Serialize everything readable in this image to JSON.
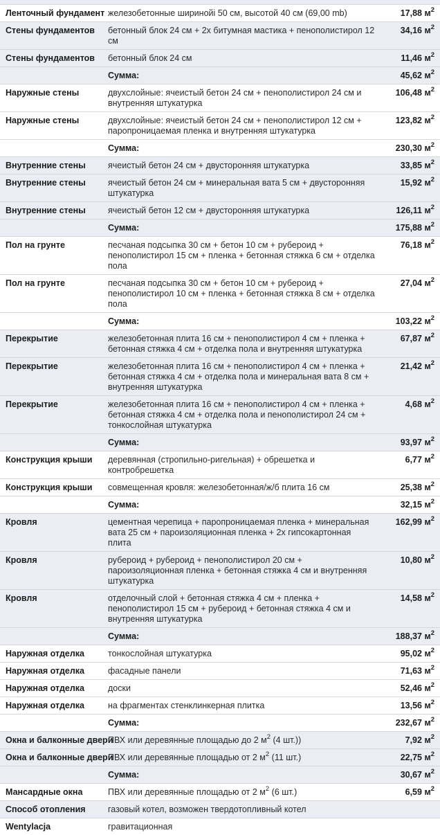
{
  "table": {
    "area_unit": "м",
    "area_sup": "2",
    "sum_label": "Сумма:",
    "colors": {
      "row_tint": "#eaedf4",
      "row_border": "#d6d6d6",
      "text": "#1c1c1c"
    },
    "rows": [
      {
        "type": "item",
        "group": 1,
        "label": "Ленточный фундамент",
        "desc": "железобетонные ширинойі 50 см, высотой 40 см (69,00 mb)",
        "value": "17,88"
      },
      {
        "type": "item",
        "group": 2,
        "label": "Стены фундаментов",
        "desc": "бетонный блок 24 см + 2х битумная мастика + пенополистирол 12 см",
        "value": "34,16"
      },
      {
        "type": "item",
        "group": 2,
        "label": "Стены фундаментов",
        "desc": "бетонный блок 24 см",
        "value": "11,46"
      },
      {
        "type": "sum",
        "group": 2,
        "label": "",
        "desc": "Сумма:",
        "value": "45,62"
      },
      {
        "type": "item",
        "group": 3,
        "label": "Наружные стены",
        "desc": "двухслойные: ячеистый бетон 24 см + пенополистирол 24 см и внутренняя штукатурка",
        "value": "106,48"
      },
      {
        "type": "item",
        "group": 3,
        "label": "Наружные стены",
        "desc": "двухслойные: ячеистый бетон 24 см + пенополистирол 12 см + паропроницаемая пленка и внутренняя штукатурка",
        "value": "123,82"
      },
      {
        "type": "sum",
        "group": 3,
        "label": "",
        "desc": "Сумма:",
        "value": "230,30"
      },
      {
        "type": "item",
        "group": 4,
        "label": "Внутренние стены",
        "desc": "ячеистый бетон 24 см + двусторонняя штукатурка",
        "value": "33,85"
      },
      {
        "type": "item",
        "group": 4,
        "label": "Внутренние стены",
        "desc": "ячеистый бетон 24 см + минеральная вата 5 см + двусторонняя штукатурка",
        "value": "15,92"
      },
      {
        "type": "item",
        "group": 4,
        "label": "Внутренние стены",
        "desc": "ячеистый бетон 12 см + двусторонняя штукатурка",
        "value": "126,11"
      },
      {
        "type": "sum",
        "group": 4,
        "label": "",
        "desc": "Сумма:",
        "value": "175,88"
      },
      {
        "type": "item",
        "group": 5,
        "label": "Пол на грунте",
        "desc": "песчаная подсыпка 30 см + бетон 10 см + рубероид + пенополистирол 15 см + пленка + бетонная стяжка 6 см + отделка пола",
        "value": "76,18"
      },
      {
        "type": "item",
        "group": 5,
        "label": "Пол на грунте",
        "desc": "песчаная подсыпка 30 см + бетон 10 см + рубероид + пенополистирол 10 см + пленка + бетонная стяжка 8 см + отделка пола",
        "value": "27,04"
      },
      {
        "type": "sum",
        "group": 5,
        "label": "",
        "desc": "Сумма:",
        "value": "103,22"
      },
      {
        "type": "item",
        "group": 6,
        "label": "Перекрытие",
        "desc": "железобетонная плита 16 см + пенополистирол 4 см + пленка + бетонная стяжка 4 см + отделка пола и внутренняя штукатурка",
        "value": "67,87"
      },
      {
        "type": "item",
        "group": 6,
        "label": "Перекрытие",
        "desc": "железобетонная плита 16 см + пенополистирол 4 см + пленка + бетонная стяжка 4 см + отделка пола и минеральная вата 8 см + внутренняя штукатурка",
        "value": "21,42"
      },
      {
        "type": "item",
        "group": 6,
        "label": "Перекрытие",
        "desc": "железобетонная плита 16 см + пенополистирол 4 см + пленка + бетонная стяжка 4 см + отделка пола и пенополистирол 24 см + тонкослойная штукатурка",
        "value": "4,68"
      },
      {
        "type": "sum",
        "group": 6,
        "label": "",
        "desc": "Сумма:",
        "value": "93,97"
      },
      {
        "type": "item",
        "group": 7,
        "label": "Конструкция крыши",
        "desc": "деревянная (стропильно-ригельная) + обрешетка и контробрешетка",
        "value": "6,77"
      },
      {
        "type": "item",
        "group": 7,
        "label": "Конструкция крыши",
        "desc": "совмещенная кровля: железобетонная/ж/б плита 16 см",
        "value": "25,38"
      },
      {
        "type": "sum",
        "group": 7,
        "label": "",
        "desc": "Сумма:",
        "value": "32,15"
      },
      {
        "type": "item",
        "group": 8,
        "label": "Кровля",
        "desc": "цементная черепица + паропроницаемая пленка + минеральная вата 25 см + пароизоляционная пленка + 2х гипсокартонная плита",
        "value": "162,99"
      },
      {
        "type": "item",
        "group": 8,
        "label": "Кровля",
        "desc": "рубероид + рубероид + пенополистирол 20 см + пароизоляционная пленка + бетонная стяжка 4 см и внутренняя штукатурка",
        "value": "10,80"
      },
      {
        "type": "item",
        "group": 8,
        "label": "Кровля",
        "desc": "отделочный слой + бетонная стяжка 4 см + пленка + пенополистирол 15 см + рубероид + бетонная стяжка 4 см и внутренняя штукатурка",
        "value": "14,58"
      },
      {
        "type": "sum",
        "group": 8,
        "label": "",
        "desc": "Сумма:",
        "value": "188,37"
      },
      {
        "type": "item",
        "group": 9,
        "label": "Наружная отделка",
        "desc": "тонкослойная штукатурка",
        "value": "95,02"
      },
      {
        "type": "item",
        "group": 9,
        "label": "Наружная отделка",
        "desc": "фасадные панели",
        "value": "71,63"
      },
      {
        "type": "item",
        "group": 9,
        "label": "Наружная отделка",
        "desc": "доски",
        "value": "52,46"
      },
      {
        "type": "item",
        "group": 9,
        "label": "Наружная отделка",
        "desc": "на фрагментах стенклинкерная плитка",
        "value": "13,56"
      },
      {
        "type": "sum",
        "group": 9,
        "label": "",
        "desc": "Сумма:",
        "value": "232,67"
      },
      {
        "type": "item",
        "group": 10,
        "label": "Окна и балконные двери",
        "desc": "ПВХ или деревянные площадью до 2 м² (4 шт.))",
        "value": "7,92"
      },
      {
        "type": "item",
        "group": 10,
        "label": "Окна и балконные двери",
        "desc": "ПВХ или деревянные площадью от 2 м² (11 шт.)",
        "value": "22,75"
      },
      {
        "type": "sum",
        "group": 10,
        "label": "",
        "desc": "Сумма:",
        "value": "30,67"
      },
      {
        "type": "item",
        "group": 11,
        "label": "Мансардные окна",
        "desc": "ПВХ или деревянные площадью от 2 м² (6 шт.)",
        "value": "6,59"
      },
      {
        "type": "item",
        "group": 12,
        "label": "Способ отопления",
        "desc": "газовый котел, возможен твердотопливный котел",
        "value": ""
      },
      {
        "type": "item",
        "group": 13,
        "label": "Wentylacja",
        "desc": "гравитационная",
        "value": ""
      }
    ]
  }
}
